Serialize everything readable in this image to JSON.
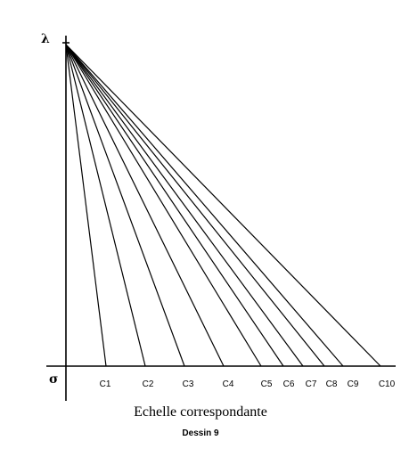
{
  "diagram": {
    "vertical_axis_symbol": "λ",
    "origin_symbol": "σ",
    "scale_labels": [
      "C1",
      "C2",
      "C3",
      "C4",
      "C5",
      "C6",
      "C7",
      "C8",
      "C9",
      "C10"
    ]
  },
  "caption": {
    "title": "Echelle correspondante",
    "subtitle": "Dessin 9"
  }
}
